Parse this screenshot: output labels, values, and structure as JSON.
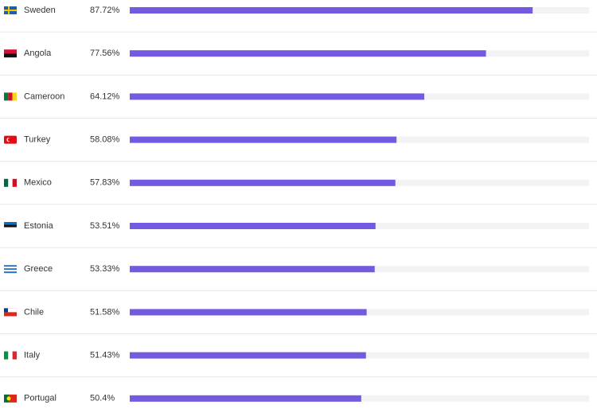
{
  "chart_data": {
    "type": "bar",
    "orientation": "horizontal",
    "categories": [
      "Sweden",
      "Angola",
      "Cameroon",
      "Turkey",
      "Mexico",
      "Estonia",
      "Greece",
      "Chile",
      "Italy",
      "Portugal"
    ],
    "values": [
      87.72,
      77.56,
      64.12,
      58.08,
      57.83,
      53.51,
      53.33,
      51.58,
      51.43,
      50.4
    ],
    "value_labels": [
      "87.72%",
      "77.56%",
      "64.12%",
      "58.08%",
      "57.83%",
      "53.51%",
      "53.33%",
      "51.58%",
      "51.43%",
      "50.4%"
    ],
    "color": "#735ae0",
    "xlim": [
      0,
      100
    ]
  }
}
